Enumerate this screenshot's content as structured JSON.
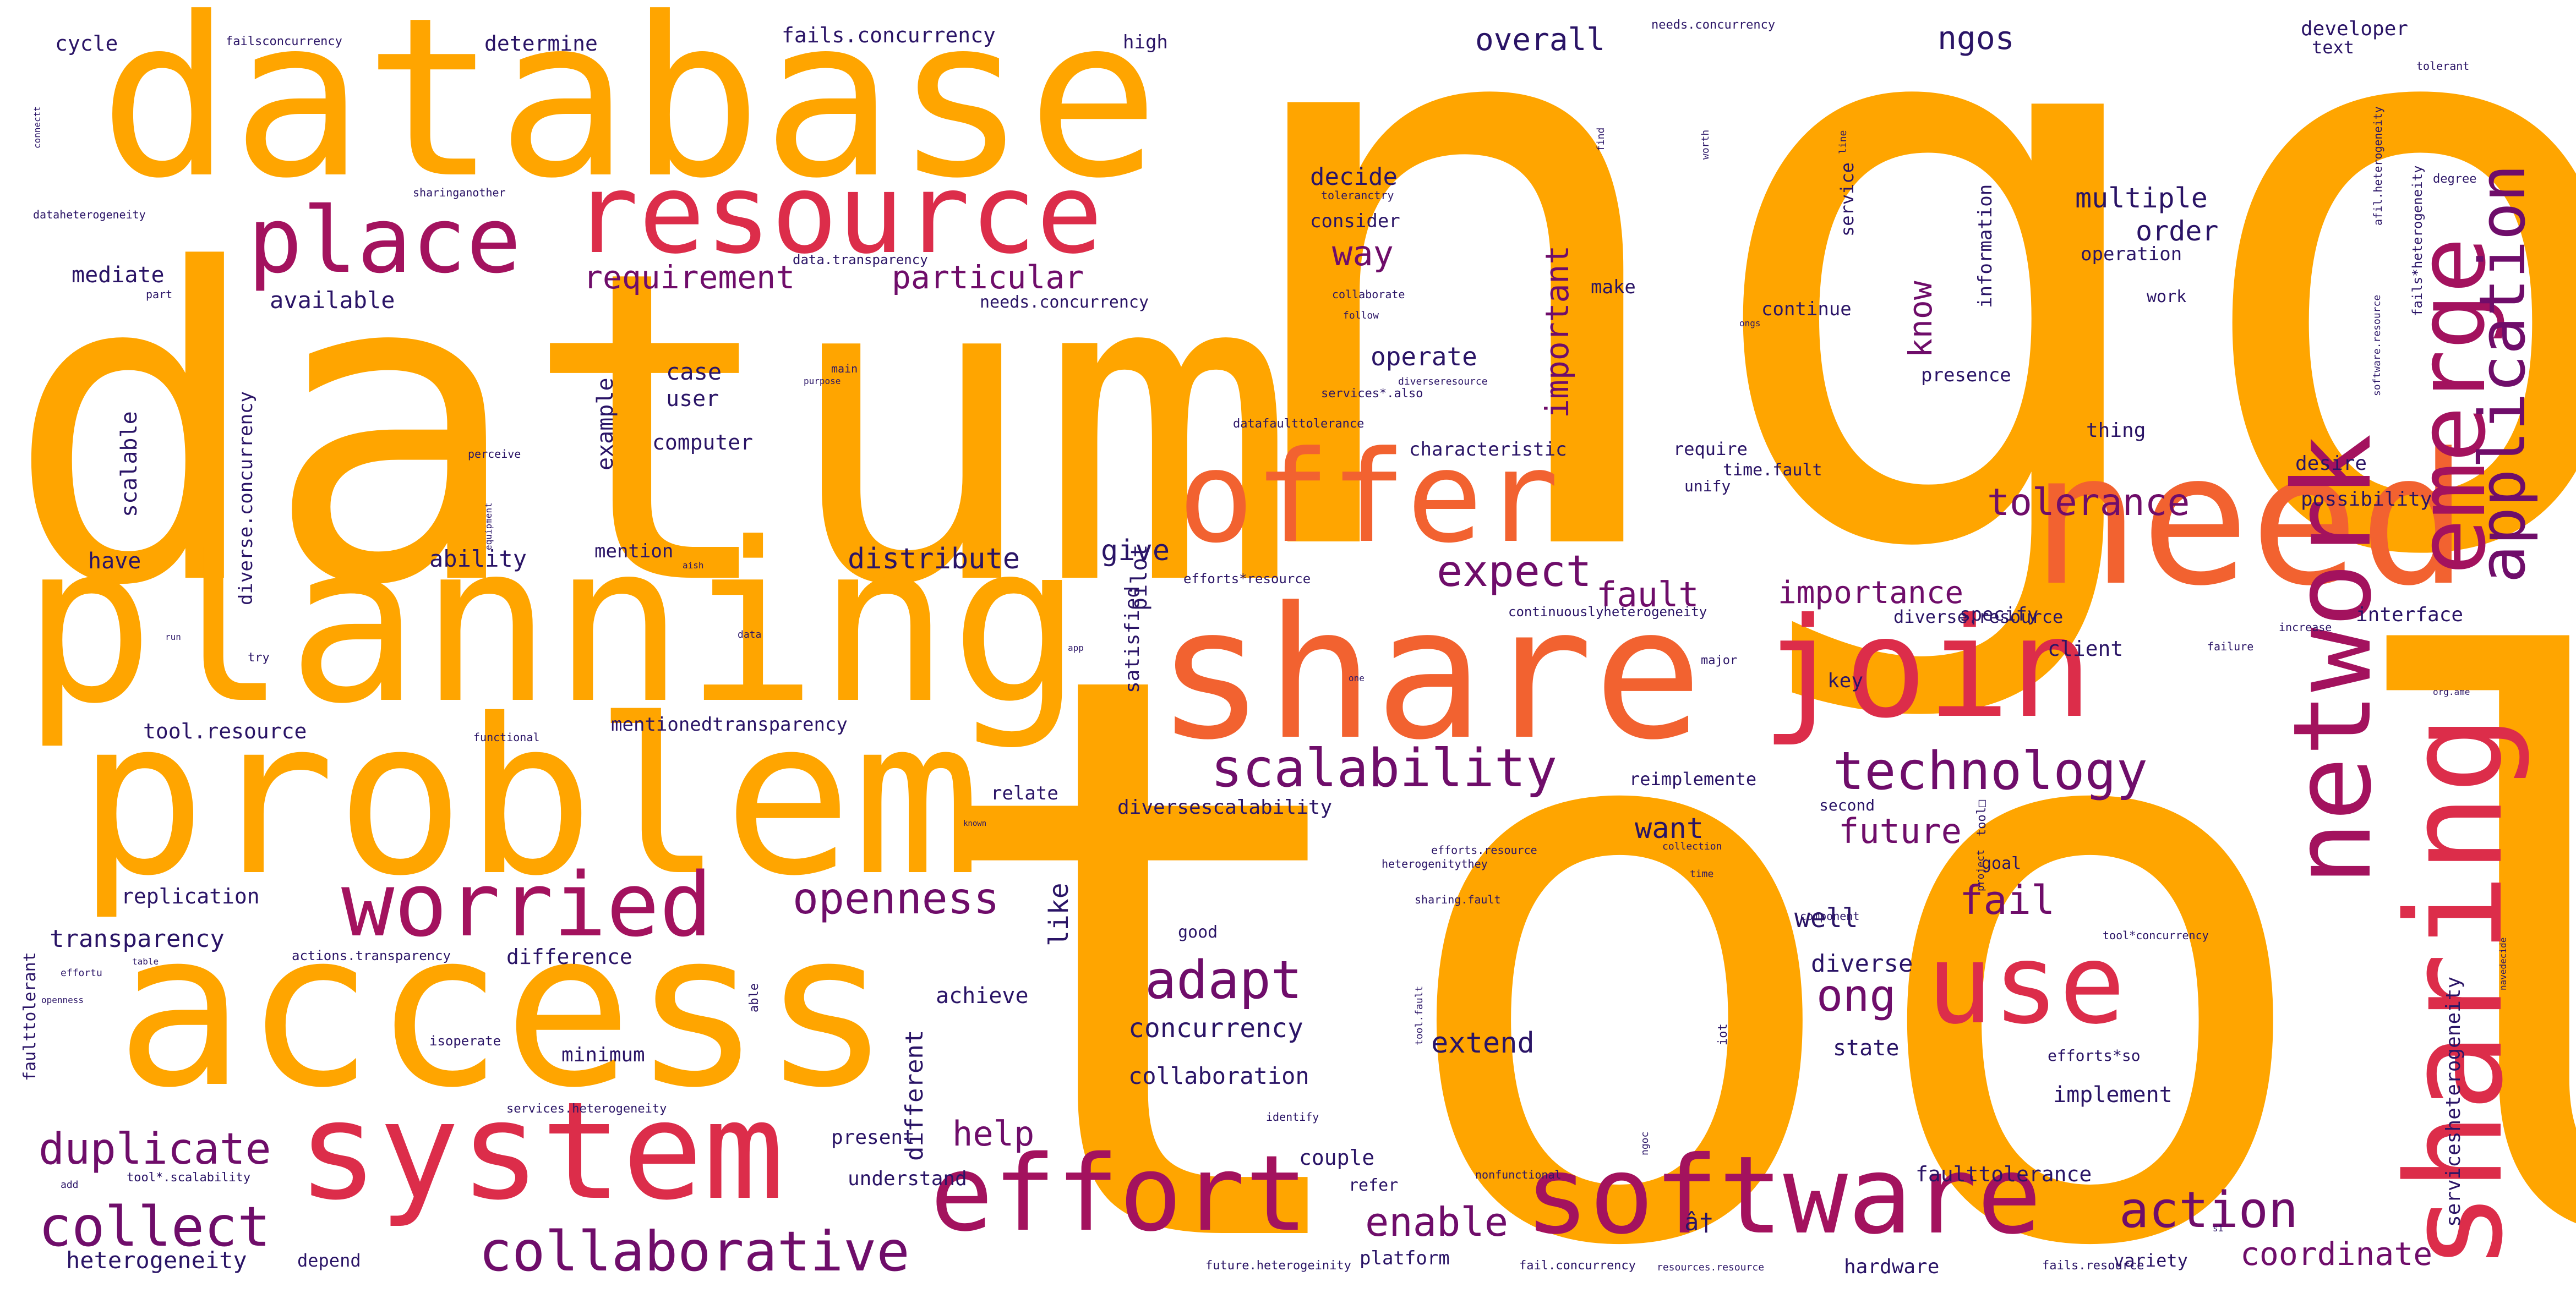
{
  "colors": {
    "orange": "#FFA500",
    "coral": "#F26230",
    "crimson": "#DC2D4A",
    "magenta": "#A3125E",
    "plum": "#6F0D6A",
    "indigo": "#2A1466",
    "navy": "#12206B",
    "background": "#FFFFFF"
  },
  "words": {
    "ngo": "ngo",
    "tool": "tool",
    "datum": "datum",
    "database": "database",
    "planning": "planning",
    "problem": "problem",
    "access": "access",
    "share": "share",
    "need": "need",
    "resource": "resource",
    "offer": "offer",
    "system": "system",
    "join": "join",
    "sharing": "sharing",
    "software": "software",
    "effort": "effort",
    "use": "use",
    "network": "network",
    "place": "place",
    "worried": "worried",
    "emerge": "emerge",
    "application": "application",
    "scalability": "scalability",
    "technology": "technology",
    "collaborative": "collaborative",
    "collect": "collect",
    "duplicate": "duplicate",
    "openness": "openness",
    "adapt": "adapt",
    "expect": "expect",
    "action": "action",
    "enable": "enable",
    "ong": "ong",
    "fail": "fail",
    "tolerance": "tolerance",
    "coordinate": "coordinate",
    "help": "help",
    "requirement": "requirement",
    "particular": "particular",
    "fault": "fault",
    "future": "future",
    "importance": "importance",
    "important": "important",
    "know": "know",
    "way": "way",
    "overall": "overall",
    "ngos": "ngos",
    "multiple": "multiple",
    "order": "order",
    "give": "give",
    "extend": "extend",
    "concurrency": "concurrency",
    "collaboration": "collaboration",
    "distribute": "distribute",
    "diverse": "diverse",
    "like": "like",
    "want": "want",
    "well": "well",
    "different": "different",
    "heterogeneity": "heterogeneity",
    "transparency": "transparency",
    "operate": "operate",
    "decide": "decide",
    "achieve": "achieve",
    "case": "case",
    "user": "user",
    "computer": "computer",
    "ability": "ability",
    "available": "available",
    "example": "example",
    "mediate": "mediate",
    "scalable": "scalable",
    "have": "have",
    "mention": "mention",
    "replication": "replication",
    "cycle": "cycle",
    "determine": "determine",
    "fails_concurrency": "fails.concurrency",
    "high": "high",
    "tool_resource": "tool.resource",
    "mentionedtransparency": "mentionedtransparency",
    "diversescalability": "diversescalability",
    "diverse_concurrency": "diverse.concurrency",
    "faulttolerance": "faulttolerance",
    "implement": "implement",
    "state": "state",
    "minimum": "minimum",
    "present": "present",
    "understand": "understand",
    "couple": "couple",
    "refer": "refer",
    "platform": "platform",
    "depend": "depend",
    "hardware": "hardware",
    "variety": "variety",
    "servicesheterogeneity": "servicesheterogeneity",
    "client": "client",
    "key": "key",
    "interface": "interface",
    "possibility": "possibility",
    "desire": "desire",
    "thing": "thing",
    "presence": "presence",
    "require": "require",
    "unify": "unify",
    "time_fault": "time.fault",
    "characteristic": "characteristic",
    "reimplemente": "reimplemente",
    "relate": "relate",
    "pilot": "pilot",
    "satisfied": "satisfied",
    "consider": "consider",
    "make": "make",
    "continue": "continue",
    "information": "information",
    "service": "service",
    "operation": "operation",
    "work": "work",
    "developer": "developer",
    "text": "text",
    "specify": "specify",
    "diverse_resource": "diverse.resource",
    "second": "second",
    "goal": "goal",
    "good": "good",
    "difference": "difference",
    "needs_concurrency": "needs.concurrency",
    "needs_concurrency_top": "needs.concurrency",
    "failsconcurrency": "failsconcurrency",
    "dataheterogeneity": "dataheterogeneity",
    "data_transparency": "data.transparency",
    "tolerant": "tolerant",
    "degree": "degree",
    "afil_heterogeneity": "afil.heterogeneity",
    "fails_heterogeneity": "fails*heterogeneity",
    "software_resource": "software.resource",
    "tool_star": "tool*",
    "efforts_resource": "efforts.resource",
    "efforts_resource2": "efforts*resource",
    "heterogenitythey": "heterogenitythey",
    "sharing_fault": "sharing.fault",
    "tool_fault": "tool.fault",
    "tool_concurrency": "tool*concurrency",
    "fail_concurrency": "fail.concurrency",
    "future_heterogeinity": "future.heterogeinity",
    "fails_resource": "fails.resource",
    "resources_resource": "resources.resource",
    "continuouslyheterogeneity": "continuouslyheterogeneity",
    "dataftaulttolerance": "datafaulttolerance",
    "services_also": "services*.also",
    "diverseresource": "diverseresource",
    "actions_transparency": "actions.transparency",
    "tool_scalability": "tool*.scalability",
    "services_heterogeneity": "services.heterogeneity",
    "efforts_so": "efforts*so",
    "isoperate": "isoperate",
    "fault_tolerant": "faulttolerant",
    "nonfunctional": "nonfunctional",
    "functional": "functional",
    "identify": "identify",
    "collection": "collection",
    "component": "component",
    "project": "project",
    "failure": "failure",
    "increase": "increase",
    "major": "major",
    "toleranctry": "toleranctry",
    "collaborate": "collaborate",
    "follow": "follow",
    "sharinganother": "sharinganother",
    "perceive": "perceive",
    "equipment": "equipment",
    "main": "main",
    "purpose": "purpose",
    "able": "able",
    "time": "time",
    "iot": "iot",
    "line": "line",
    "find": "find",
    "worth": "worth",
    "ongs": "ongs",
    "org_ame": "org.ame",
    "try": "try",
    "run": "run",
    "add": "add",
    "table": "table",
    "openness_small": "openness",
    "effort_small": "effortu",
    "connectt": "connectt",
    "part": "part",
    "data": "data",
    "app": "app",
    "one": "one",
    "ai_sh": "aish",
    "navedecide": "navedecide",
    "ngoc": "ngoc",
    "tool_box": "tool□",
    "at_glyph": "â†",
    "s1": "s1",
    "known": "known"
  }
}
